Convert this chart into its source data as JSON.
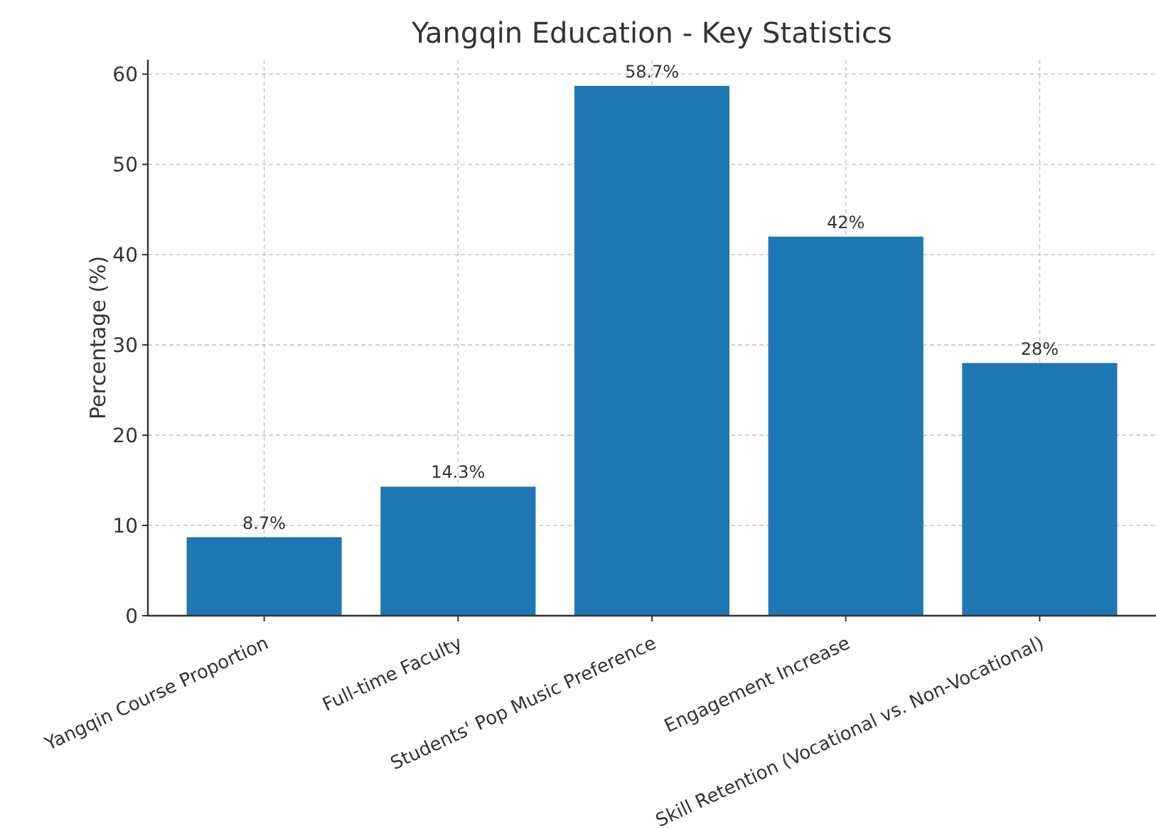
{
  "chart_data": {
    "type": "bar",
    "title": "Yangqin Education - Key Statistics",
    "ylabel": "Percentage (%)",
    "categories": [
      "Yangqin Course Proportion",
      "Full-time Faculty",
      "Students' Pop Music Preference",
      "Engagement Increase",
      "Skill Retention (Vocational vs. Non-Vocational)"
    ],
    "values": [
      8.7,
      14.3,
      58.7,
      42,
      28
    ],
    "value_labels": [
      "8.7%",
      "14.3%",
      "58.7%",
      "42%",
      "28%"
    ],
    "color": "#1f77b4",
    "ylim": [
      0,
      61.6
    ],
    "yticks": [
      0,
      10,
      20,
      30,
      40,
      50,
      60
    ],
    "grid": true
  }
}
